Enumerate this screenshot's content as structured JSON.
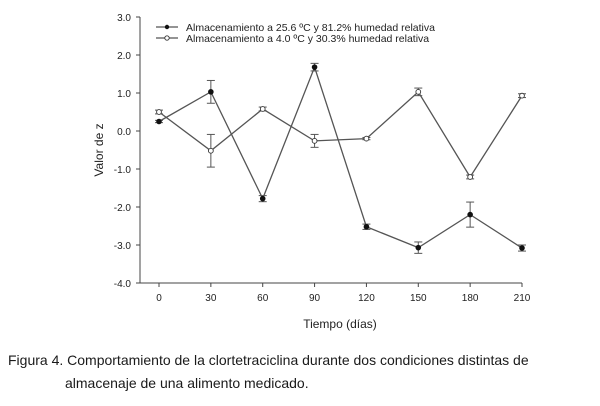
{
  "chart_data": {
    "type": "line",
    "title": "",
    "xlabel": "Tiempo (días)",
    "ylabel": "Valor de z",
    "xlim": [
      0,
      210
    ],
    "ylim": [
      -4.0,
      3.0
    ],
    "x_ticks": [
      0,
      30,
      60,
      90,
      120,
      150,
      180,
      210
    ],
    "x_tick_labels": [
      "0",
      "30",
      "60",
      "90",
      "120",
      "150",
      "180",
      "210"
    ],
    "y_ticks": [
      3.0,
      2.0,
      1.0,
      0.0,
      -1.0,
      -2.0,
      -3.0,
      -4.0
    ],
    "y_tick_labels": [
      "3.0",
      "2.0",
      "1.0",
      "0.0",
      "-1.0",
      "-2.0",
      "-3.0",
      "-4.0"
    ],
    "grid": false,
    "legend_position": "top-left",
    "x": [
      0,
      30,
      60,
      90,
      120,
      150,
      180,
      210
    ],
    "series": [
      {
        "name": "Almacenamiento a 25.6 ºC y 81.2% humedad relativa",
        "marker": "filled-circle",
        "color": "#555555",
        "values": [
          0.25,
          1.03,
          -1.78,
          1.68,
          -2.52,
          -3.07,
          -2.2,
          -3.08
        ],
        "errors": [
          0.03,
          0.3,
          0.08,
          0.1,
          0.07,
          0.15,
          0.33,
          0.08
        ]
      },
      {
        "name": "Almacenamiento a 4.0 ºC y 30.3% humedad relativa",
        "marker": "open-circle",
        "color": "#555555",
        "values": [
          0.5,
          -0.52,
          0.58,
          -0.26,
          -0.2,
          1.03,
          -1.21,
          0.93
        ],
        "errors": [
          0.05,
          0.43,
          0.05,
          0.17,
          0.03,
          0.1,
          0.05,
          0.05
        ]
      }
    ]
  },
  "caption": {
    "line1": "Figura 4. Comportamiento de la clortetraciclina durante dos condiciones distintas de",
    "line2": "almacenaje de una alimento medicado."
  }
}
